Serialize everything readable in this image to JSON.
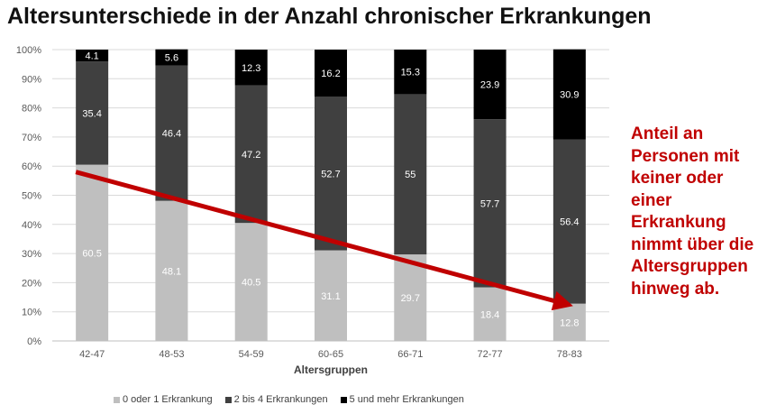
{
  "chart_data": {
    "type": "bar",
    "stacked": true,
    "normalized": true,
    "title": "Altersunterschiede in der Anzahl chronischer Erkrankungen",
    "xlabel": "Altersgruppen",
    "ylabel": "",
    "ylim": [
      0,
      100
    ],
    "yticks": [
      "0%",
      "10%",
      "20%",
      "30%",
      "40%",
      "50%",
      "60%",
      "70%",
      "80%",
      "90%",
      "100%"
    ],
    "categories": [
      "42-47",
      "48-53",
      "54-59",
      "60-65",
      "66-71",
      "72-77",
      "78-83"
    ],
    "series": [
      {
        "name": "0 oder 1 Erkrankung",
        "color": "#bfbfbf",
        "label_color": "#ffffff",
        "values": [
          60.5,
          48.1,
          40.5,
          31.1,
          29.7,
          18.4,
          12.8
        ],
        "labels": [
          "60.5",
          "48.1",
          "40.5",
          "31.1",
          "29.7",
          "18.4",
          "12.8"
        ]
      },
      {
        "name": "2 bis 4 Erkrankungen",
        "color": "#404040",
        "label_color": "#ffffff",
        "values": [
          35.4,
          46.4,
          47.2,
          52.7,
          55,
          57.7,
          56.4
        ],
        "labels": [
          "35.4",
          "46.4",
          "47.2",
          "52.7",
          "55",
          "57.7",
          "56.4"
        ]
      },
      {
        "name": "5 und mehr Erkrankungen",
        "color": "#000000",
        "label_color": "#ffffff",
        "values": [
          4.1,
          5.6,
          12.3,
          16.2,
          15.3,
          23.9,
          30.9
        ],
        "labels": [
          "4.1",
          "5.6",
          "12.3",
          "16.2",
          "15.3",
          "23.9",
          "30.9"
        ]
      }
    ],
    "legend_position": "bottom",
    "grid": true,
    "trend_arrow": {
      "color": "#c00000",
      "from": {
        "category": "42-47",
        "y": 58
      },
      "to": {
        "category": "78-83",
        "y": 12
      }
    }
  },
  "annotation": {
    "lines": [
      "Anteil an",
      "Personen mit",
      "keiner oder",
      "einer",
      "Erkrankung",
      "nimmt über die",
      "Altersgruppen",
      "hinweg ab."
    ],
    "color": "#c00000"
  }
}
